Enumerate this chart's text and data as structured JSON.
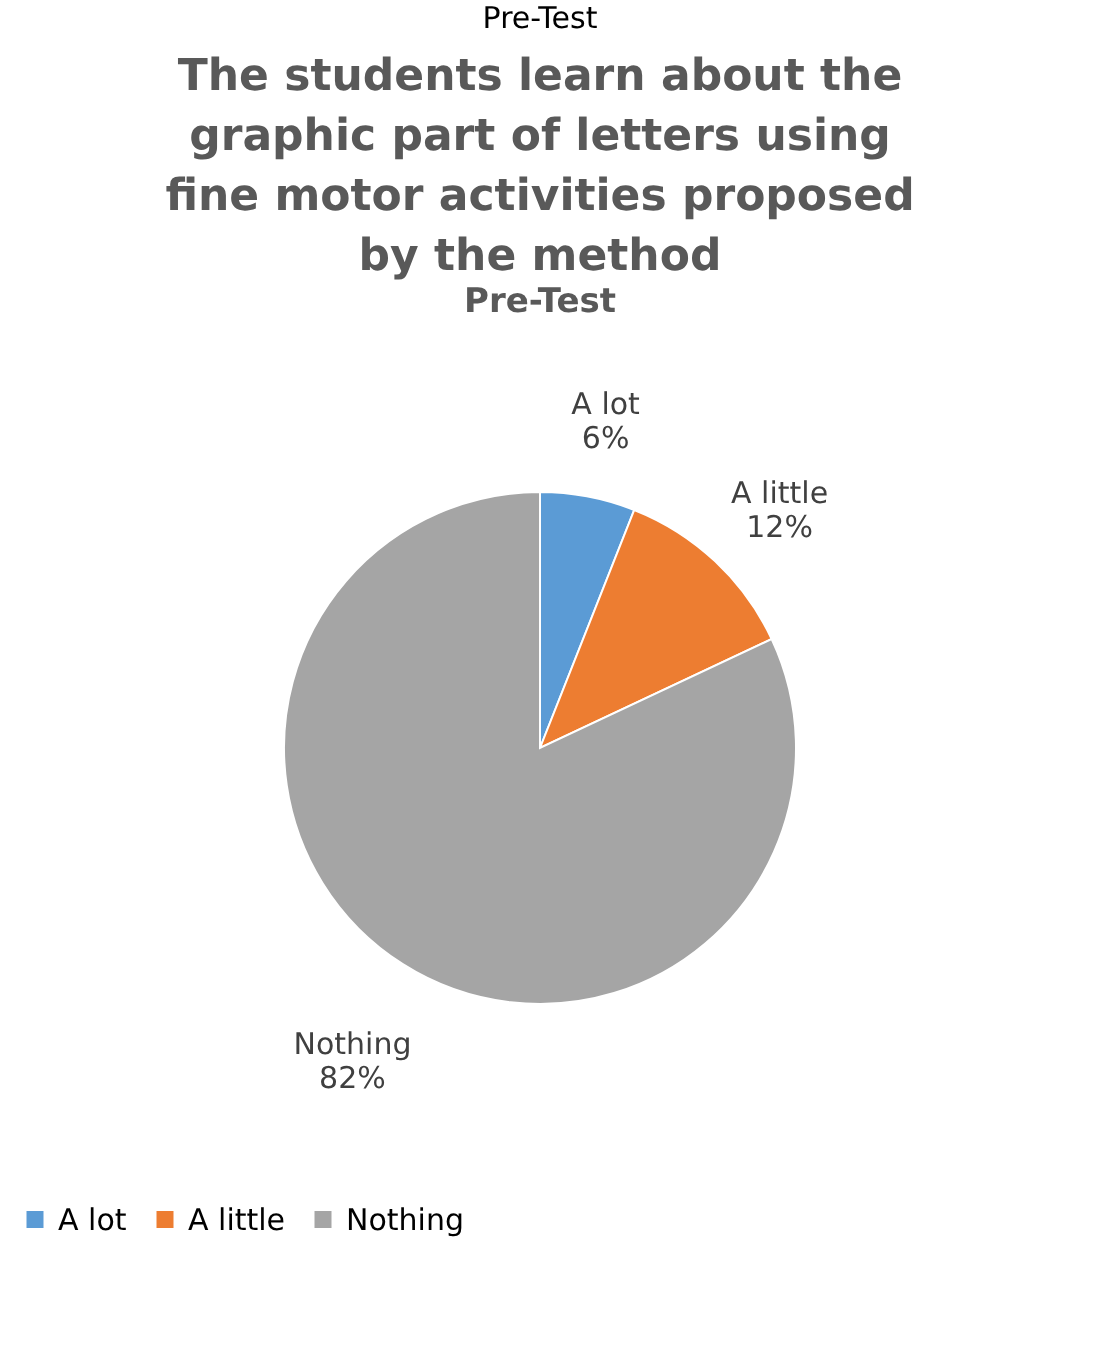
{
  "chart_data": {
    "type": "pie",
    "title": "The students learn about the graphic part of letters using fine motor activities proposed by the method",
    "subtitle": "Pre-Test",
    "annotations": [
      "Pre-Test"
    ],
    "categories": [
      "A lot",
      "A little",
      "Nothing"
    ],
    "values": [
      6,
      12,
      82
    ],
    "value_labels": [
      "6%",
      "12%",
      "82%"
    ],
    "colors": [
      "#5b9bd5",
      "#ed7d31",
      "#a5a5a5"
    ],
    "legend": "bottom"
  }
}
